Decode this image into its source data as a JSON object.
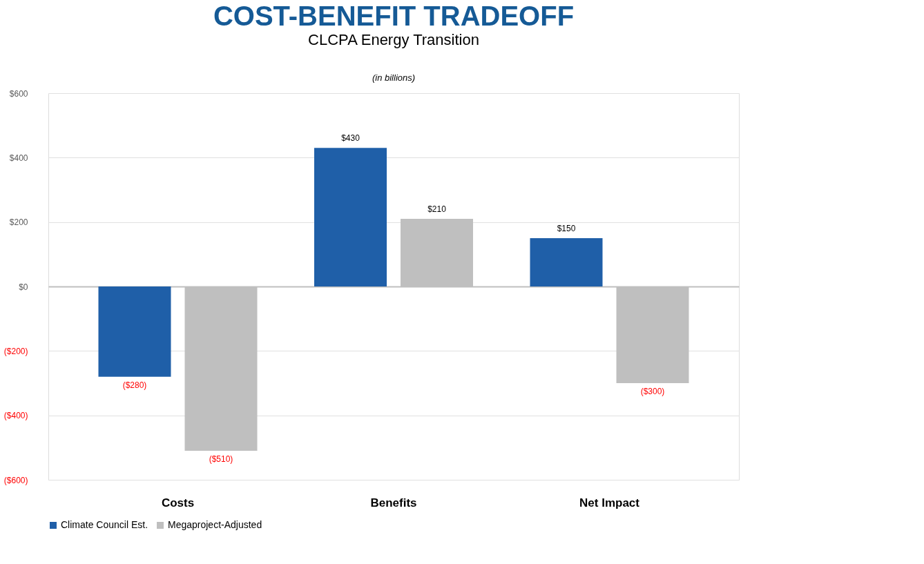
{
  "chart_data": {
    "type": "bar",
    "title": "COST-BENEFIT TRADEOFF",
    "subtitle": "CLCPA Energy Transition",
    "annotations": [
      "(in billions)"
    ],
    "categories": [
      "Costs",
      "Benefits",
      "Net Impact"
    ],
    "series": [
      {
        "name": "Climate Council Est.",
        "color": "#1f5fa8",
        "values": [
          -280,
          430,
          150
        ],
        "value_labels": [
          "($280)",
          "$430",
          "$150"
        ]
      },
      {
        "name": "Megaproject-Adjusted",
        "color": "#bfbfbf",
        "values": [
          -510,
          210,
          -300
        ],
        "value_labels": [
          "($510)",
          "$210",
          "($300)"
        ]
      }
    ],
    "ylim": [
      -600,
      600
    ],
    "yticks": [
      {
        "value": -600,
        "label": "($600)"
      },
      {
        "value": -400,
        "label": "($400)"
      },
      {
        "value": -200,
        "label": "($200)"
      },
      {
        "value": 0,
        "label": "$0"
      },
      {
        "value": 200,
        "label": "$200"
      },
      {
        "value": 400,
        "label": "$400"
      },
      {
        "value": 600,
        "label": "$600"
      }
    ],
    "grid": "y",
    "legend": "bottom"
  }
}
